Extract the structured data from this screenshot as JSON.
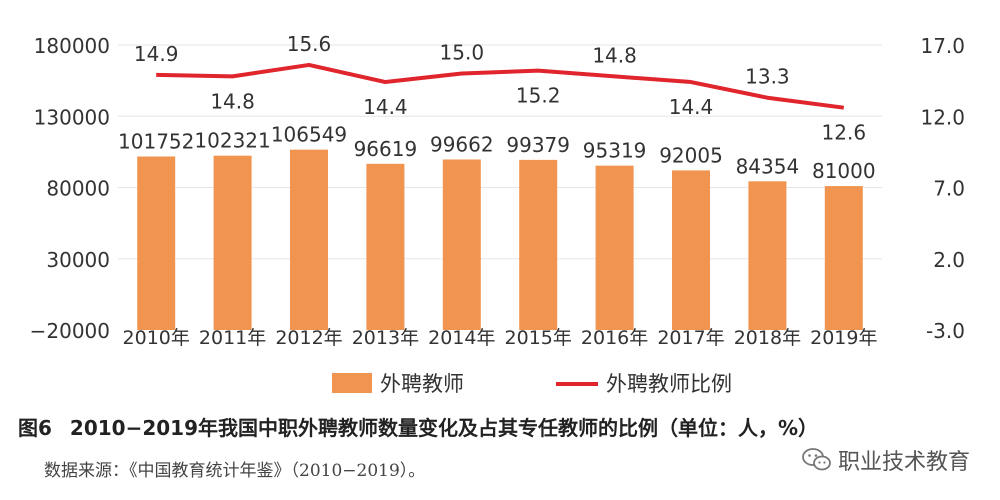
{
  "chart_data": {
    "type": "bar+line",
    "categories": [
      "2010年",
      "2011年",
      "2012年",
      "2013年",
      "2014年",
      "2015年",
      "2016年",
      "2017年",
      "2018年",
      "2019年"
    ],
    "series": [
      {
        "name": "外聘教师",
        "type": "bar",
        "axis": "left",
        "color": "#f0944f",
        "values": [
          101752,
          102321,
          106549,
          96619,
          99662,
          99379,
          95319,
          92005,
          84354,
          81000
        ]
      },
      {
        "name": "外聘教师比例",
        "type": "line",
        "axis": "right",
        "color": "#e0252d",
        "values": [
          14.9,
          14.8,
          15.6,
          14.4,
          15.0,
          15.2,
          14.8,
          14.4,
          13.3,
          12.6
        ]
      }
    ],
    "y_left": {
      "min": -20000,
      "max": 180000,
      "ticks": [
        "180000",
        "130000",
        "80000",
        "30000",
        "−20000"
      ]
    },
    "y_right": {
      "min": -3.0,
      "max": 17.0,
      "ticks": [
        "17.0",
        "12.0",
        "7.0",
        "2.0",
        "-3.0"
      ]
    },
    "grid": true,
    "legend_position": "bottom"
  },
  "caption": {
    "figure": "图6",
    "text": "2010−2019年我国中职外聘教师数量变化及占其专任教师的比例（单位：人，%）"
  },
  "source": "数据来源：《中国教育统计年鉴》（2010−2019）。",
  "watermark": "职业技术教育"
}
